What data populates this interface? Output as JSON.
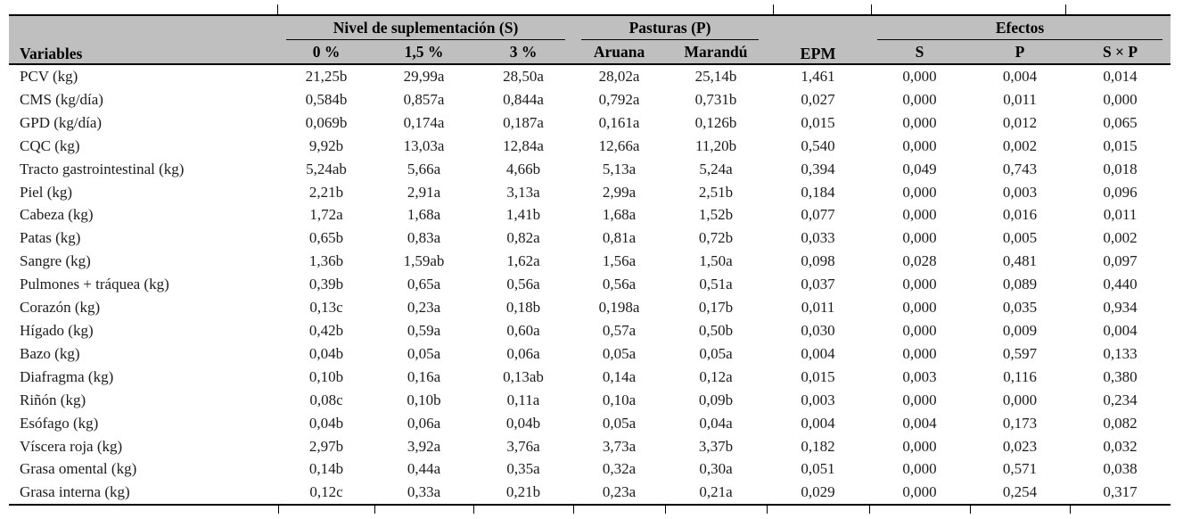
{
  "colors": {
    "header_bg": "#bfbfbf",
    "rule": "#000000",
    "text": "#1c1c1c"
  },
  "table": {
    "header": {
      "variables_label": "Variables",
      "epm_label": "EPM",
      "groups": [
        {
          "label": "Nivel de suplementación (S)",
          "cols": [
            "0 %",
            "1,5 %",
            "3 %"
          ]
        },
        {
          "label": "Pasturas (P)",
          "cols": [
            "Aruana",
            "Marandú"
          ]
        },
        {
          "label": "Efectos",
          "cols": [
            "S",
            "P",
            "S × P"
          ]
        }
      ]
    },
    "rows": [
      {
        "variable": "PCV (kg)",
        "values": [
          "21,25b",
          "29,99a",
          "28,50a",
          "28,02a",
          "25,14b",
          "1,461",
          "0,000",
          "0,004",
          "0,014"
        ]
      },
      {
        "variable": "CMS (kg/día)",
        "values": [
          "0,584b",
          "0,857a",
          "0,844a",
          "0,792a",
          "0,731b",
          "0,027",
          "0,000",
          "0,011",
          "0,000"
        ]
      },
      {
        "variable": "GPD (kg/día)",
        "values": [
          "0,069b",
          "0,174a",
          "0,187a",
          "0,161a",
          "0,126b",
          "0,015",
          "0,000",
          "0,012",
          "0,065"
        ]
      },
      {
        "variable": "CQC (kg)",
        "values": [
          "9,92b",
          "13,03a",
          "12,84a",
          "12,66a",
          "11,20b",
          "0,540",
          "0,000",
          "0,002",
          "0,015"
        ]
      },
      {
        "variable": "Tracto gastrointestinal (kg)",
        "values": [
          "5,24ab",
          "5,66a",
          "4,66b",
          "5,13a",
          "5,24a",
          "0,394",
          "0,049",
          "0,743",
          "0,018"
        ]
      },
      {
        "variable": "Piel (kg)",
        "values": [
          "2,21b",
          "2,91a",
          "3,13a",
          "2,99a",
          "2,51b",
          "0,184",
          "0,000",
          "0,003",
          "0,096"
        ]
      },
      {
        "variable": "Cabeza (kg)",
        "values": [
          "1,72a",
          "1,68a",
          "1,41b",
          "1,68a",
          "1,52b",
          "0,077",
          "0,000",
          "0,016",
          "0,011"
        ]
      },
      {
        "variable": "Patas (kg)",
        "values": [
          "0,65b",
          "0,83a",
          "0,82a",
          "0,81a",
          "0,72b",
          "0,033",
          "0,000",
          "0,005",
          "0,002"
        ]
      },
      {
        "variable": "Sangre (kg)",
        "values": [
          "1,36b",
          "1,59ab",
          "1,62a",
          "1,56a",
          "1,50a",
          "0,098",
          "0,028",
          "0,481",
          "0,097"
        ]
      },
      {
        "variable": "Pulmones + tráquea (kg)",
        "values": [
          "0,39b",
          "0,65a",
          "0,56a",
          "0,56a",
          "0,51a",
          "0,037",
          "0,000",
          "0,089",
          "0,440"
        ]
      },
      {
        "variable": "Corazón (kg)",
        "values": [
          "0,13c",
          "0,23a",
          "0,18b",
          "0,198a",
          "0,17b",
          "0,011",
          "0,000",
          "0,035",
          "0,934"
        ]
      },
      {
        "variable": "Hígado (kg)",
        "values": [
          "0,42b",
          "0,59a",
          "0,60a",
          "0,57a",
          "0,50b",
          "0,030",
          "0,000",
          "0,009",
          "0,004"
        ]
      },
      {
        "variable": "Bazo (kg)",
        "values": [
          "0,04b",
          "0,05a",
          "0,06a",
          "0,05a",
          "0,05a",
          "0,004",
          "0,000",
          "0,597",
          "0,133"
        ]
      },
      {
        "variable": "Diafragma (kg)",
        "values": [
          "0,10b",
          "0,16a",
          "0,13ab",
          "0,14a",
          "0,12a",
          "0,015",
          "0,003",
          "0,116",
          "0,380"
        ]
      },
      {
        "variable": "Riñón (kg)",
        "values": [
          "0,08c",
          "0,10b",
          "0,11a",
          "0,10a",
          "0,09b",
          "0,003",
          "0,000",
          "0,000",
          "0,234"
        ]
      },
      {
        "variable": "Esófago (kg)",
        "values": [
          "0,04b",
          "0,06a",
          "0,04b",
          "0,05a",
          "0,04a",
          "0,004",
          "0,004",
          "0,173",
          "0,082"
        ]
      },
      {
        "variable": "Víscera roja (kg)",
        "values": [
          "2,97b",
          "3,92a",
          "3,76a",
          "3,73a",
          "3,37b",
          "0,182",
          "0,000",
          "0,023",
          "0,032"
        ]
      },
      {
        "variable": "Grasa omental (kg)",
        "values": [
          "0,14b",
          "0,44a",
          "0,35a",
          "0,32a",
          "0,30a",
          "0,051",
          "0,000",
          "0,571",
          "0,038"
        ]
      },
      {
        "variable": "Grasa interna (kg)",
        "values": [
          "0,12c",
          "0,33a",
          "0,21b",
          "0,23a",
          "0,21a",
          "0,029",
          "0,000",
          "0,254",
          "0,317"
        ]
      }
    ]
  }
}
